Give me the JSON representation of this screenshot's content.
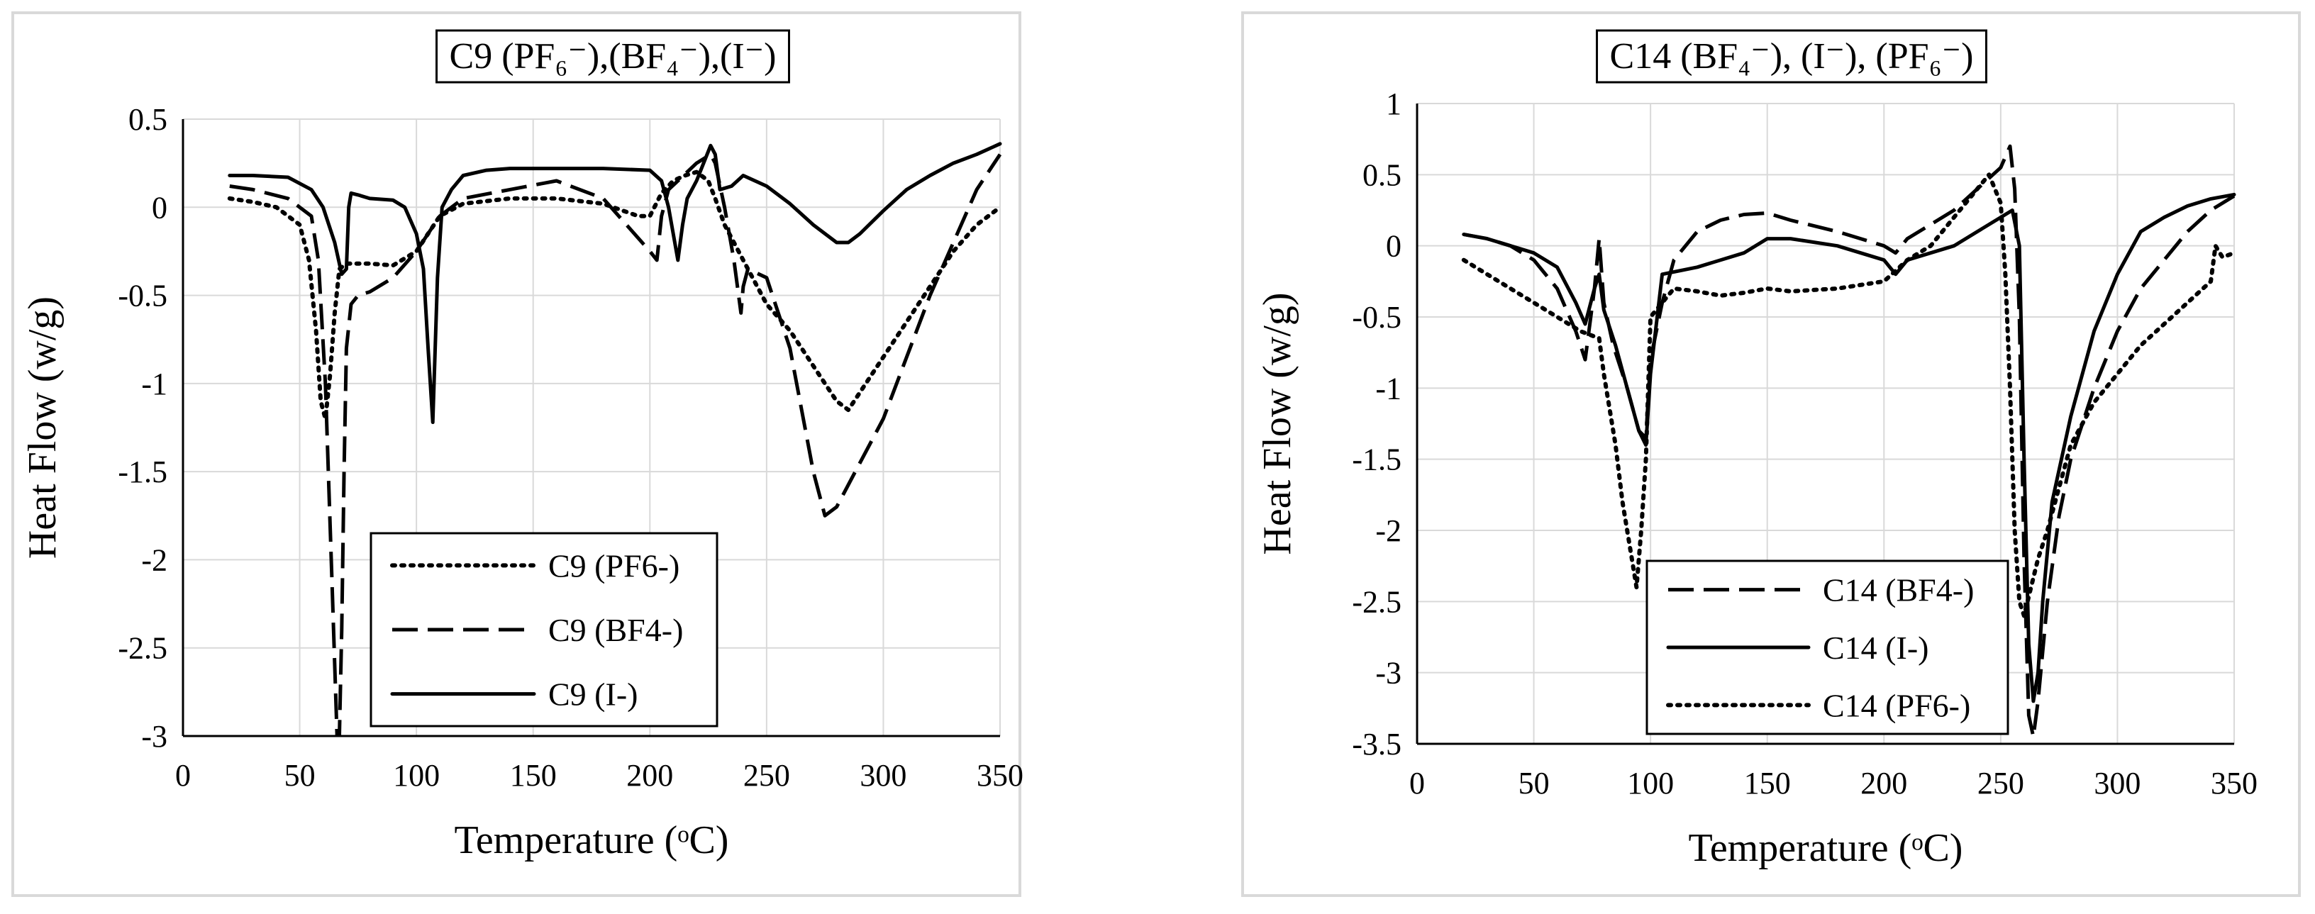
{
  "chart_data": [
    {
      "type": "line",
      "title": "C9 (PF₆⁻),(BF₄⁻),(I⁻)",
      "xlabel": "Temperature (ᵒC)",
      "ylabel": "Heat Flow (w/g)",
      "xlim": [
        0,
        350
      ],
      "ylim": [
        -3,
        0.5
      ],
      "xticks": [
        0,
        50,
        100,
        150,
        200,
        250,
        300,
        350
      ],
      "yticks": [
        0.5,
        0,
        -0.5,
        -1,
        -1.5,
        -2,
        -2.5,
        -3
      ],
      "ytick_labels": [
        "0.5",
        "0",
        "-0.5",
        "-1",
        "-1.5",
        "-2",
        "-2.5",
        "-3"
      ],
      "grid": true,
      "legend_position": "bottom-center",
      "series": [
        {
          "name": "C9 (PF6-)",
          "style": "dotted",
          "x": [
            20,
            30,
            40,
            50,
            54,
            57,
            59,
            61,
            63,
            65,
            67,
            70,
            80,
            90,
            100,
            110,
            120,
            140,
            160,
            180,
            195,
            200,
            205,
            210,
            215,
            220,
            225,
            228,
            232,
            240,
            250,
            260,
            270,
            280,
            285,
            290,
            300,
            310,
            320,
            330,
            340,
            350
          ],
          "y": [
            0.05,
            0.03,
            0.0,
            -0.1,
            -0.3,
            -0.7,
            -1.1,
            -1.2,
            -0.95,
            -0.6,
            -0.35,
            -0.32,
            -0.32,
            -0.33,
            -0.25,
            -0.05,
            0.02,
            0.05,
            0.05,
            0.02,
            -0.05,
            -0.05,
            0.08,
            0.15,
            0.18,
            0.2,
            0.15,
            0.05,
            -0.1,
            -0.3,
            -0.55,
            -0.7,
            -0.9,
            -1.1,
            -1.15,
            -1.05,
            -0.85,
            -0.65,
            -0.45,
            -0.25,
            -0.1,
            0.0
          ]
        },
        {
          "name": "C9 (BF4-)",
          "style": "dashed",
          "x": [
            20,
            30,
            45,
            55,
            58,
            61,
            64,
            66,
            67,
            68,
            69,
            70,
            72,
            75,
            80,
            90,
            100,
            110,
            120,
            140,
            160,
            180,
            200,
            203,
            205,
            208,
            212,
            220,
            226,
            228,
            232,
            236,
            239,
            240,
            242,
            250,
            260,
            270,
            275,
            280,
            290,
            300,
            310,
            320,
            330,
            340,
            350
          ],
          "y": [
            0.12,
            0.1,
            0.05,
            -0.05,
            -0.3,
            -1.0,
            -2.2,
            -3.0,
            -3.0,
            -2.4,
            -1.5,
            -0.8,
            -0.55,
            -0.5,
            -0.48,
            -0.4,
            -0.25,
            -0.05,
            0.05,
            0.1,
            0.15,
            0.05,
            -0.25,
            -0.3,
            -0.05,
            0.1,
            0.15,
            0.25,
            0.3,
            0.25,
            0.0,
            -0.3,
            -0.6,
            -0.45,
            -0.35,
            -0.4,
            -0.8,
            -1.5,
            -1.75,
            -1.7,
            -1.45,
            -1.2,
            -0.85,
            -0.5,
            -0.2,
            0.1,
            0.3
          ]
        },
        {
          "name": "C9 (I-)",
          "style": "solid",
          "x": [
            20,
            30,
            45,
            55,
            60,
            65,
            68,
            70,
            71,
            72,
            75,
            80,
            90,
            95,
            100,
            103,
            105,
            107,
            109,
            111,
            115,
            120,
            130,
            140,
            160,
            180,
            200,
            205,
            208,
            210,
            212,
            214,
            216,
            220,
            226,
            228,
            230,
            235,
            240,
            250,
            260,
            270,
            280,
            285,
            290,
            300,
            310,
            320,
            330,
            340,
            350
          ],
          "y": [
            0.18,
            0.18,
            0.17,
            0.1,
            0.0,
            -0.2,
            -0.38,
            -0.35,
            0.0,
            0.08,
            0.07,
            0.05,
            0.04,
            0.0,
            -0.15,
            -0.35,
            -0.8,
            -1.22,
            -0.4,
            0.0,
            0.1,
            0.18,
            0.21,
            0.22,
            0.22,
            0.22,
            0.21,
            0.15,
            0.0,
            -0.15,
            -0.3,
            -0.1,
            0.05,
            0.15,
            0.35,
            0.3,
            0.1,
            0.12,
            0.18,
            0.12,
            0.02,
            -0.1,
            -0.2,
            -0.2,
            -0.15,
            -0.02,
            0.1,
            0.18,
            0.25,
            0.3,
            0.36
          ]
        }
      ]
    },
    {
      "type": "line",
      "title": "C14 (BF₄⁻), (I⁻), (PF₆⁻)",
      "xlabel": "Temperature (ᵒC)",
      "ylabel": "Heat Flow (w/g)",
      "xlim": [
        0,
        350
      ],
      "ylim": [
        -3.5,
        1
      ],
      "xticks": [
        0,
        50,
        100,
        150,
        200,
        250,
        300,
        350
      ],
      "yticks": [
        1,
        0.5,
        0,
        -0.5,
        -1,
        -1.5,
        -2,
        -2.5,
        -3,
        -3.5
      ],
      "ytick_labels": [
        "1",
        "0.5",
        "0",
        "-0.5",
        "-1",
        "-1.5",
        "-2",
        "-2.5",
        "-3",
        "-3.5"
      ],
      "grid": true,
      "legend_position": "bottom-center",
      "series": [
        {
          "name": "C14 (BF4-)",
          "style": "dashed",
          "x": [
            20,
            30,
            40,
            50,
            60,
            68,
            72,
            76,
            78,
            80,
            84,
            90,
            95,
            98,
            100,
            105,
            110,
            120,
            130,
            140,
            150,
            160,
            180,
            200,
            205,
            210,
            220,
            230,
            240,
            250,
            254,
            256,
            258,
            260,
            262,
            264,
            266,
            270,
            275,
            280,
            290,
            300,
            310,
            320,
            330,
            340,
            350
          ],
          "y": [
            0.08,
            0.05,
            0.0,
            -0.1,
            -0.3,
            -0.6,
            -0.8,
            -0.3,
            0.05,
            -0.4,
            -0.7,
            -1.0,
            -1.3,
            -1.35,
            -0.8,
            -0.4,
            -0.1,
            0.1,
            0.18,
            0.22,
            0.23,
            0.18,
            0.1,
            0.0,
            -0.05,
            0.05,
            0.15,
            0.25,
            0.4,
            0.55,
            0.7,
            0.4,
            -0.5,
            -2.2,
            -3.3,
            -3.45,
            -3.2,
            -2.5,
            -1.9,
            -1.5,
            -1.0,
            -0.6,
            -0.3,
            -0.1,
            0.1,
            0.25,
            0.35
          ]
        },
        {
          "name": "C14 (I-)",
          "style": "solid",
          "x": [
            20,
            30,
            40,
            50,
            60,
            68,
            72,
            76,
            78,
            80,
            85,
            90,
            95,
            98,
            100,
            105,
            120,
            140,
            150,
            160,
            180,
            200,
            205,
            210,
            220,
            230,
            240,
            250,
            255,
            258,
            260,
            262,
            264,
            266,
            268,
            272,
            280,
            290,
            300,
            310,
            320,
            330,
            340,
            350
          ],
          "y": [
            0.08,
            0.05,
            0.0,
            -0.05,
            -0.15,
            -0.4,
            -0.55,
            -0.3,
            -0.2,
            -0.45,
            -0.7,
            -1.0,
            -1.3,
            -1.4,
            -0.9,
            -0.2,
            -0.15,
            -0.05,
            0.05,
            0.05,
            0.0,
            -0.1,
            -0.2,
            -0.1,
            -0.05,
            0.0,
            0.1,
            0.2,
            0.25,
            0.0,
            -1.5,
            -2.8,
            -3.2,
            -3.0,
            -2.5,
            -1.8,
            -1.2,
            -0.6,
            -0.2,
            0.1,
            0.2,
            0.28,
            0.33,
            0.36
          ]
        },
        {
          "name": "C14 (PF6-)",
          "style": "dotted",
          "x": [
            20,
            30,
            40,
            50,
            60,
            70,
            78,
            80,
            85,
            88,
            92,
            94,
            96,
            98,
            100,
            110,
            120,
            130,
            140,
            150,
            160,
            180,
            200,
            210,
            220,
            230,
            240,
            245,
            250,
            252,
            254,
            256,
            258,
            260,
            263,
            266,
            270,
            275,
            280,
            290,
            300,
            310,
            320,
            330,
            340,
            342,
            345,
            350
          ],
          "y": [
            -0.1,
            -0.2,
            -0.3,
            -0.4,
            -0.5,
            -0.6,
            -0.65,
            -0.9,
            -1.4,
            -1.8,
            -2.2,
            -2.4,
            -2.0,
            -1.5,
            -0.5,
            -0.3,
            -0.32,
            -0.35,
            -0.33,
            -0.3,
            -0.32,
            -0.3,
            -0.25,
            -0.1,
            0.0,
            0.2,
            0.4,
            0.5,
            0.3,
            -0.2,
            -1.0,
            -2.0,
            -2.5,
            -2.6,
            -2.4,
            -2.2,
            -2.0,
            -1.7,
            -1.4,
            -1.1,
            -0.9,
            -0.7,
            -0.55,
            -0.4,
            -0.25,
            0.0,
            -0.08,
            -0.05
          ]
        }
      ]
    }
  ]
}
